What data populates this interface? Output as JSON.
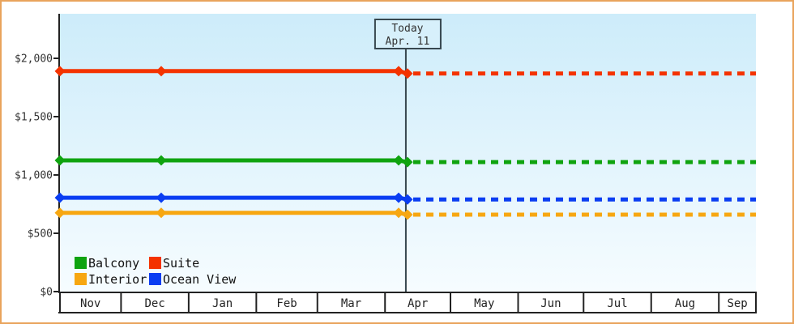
{
  "colors": {
    "frame_border": "#e9a45c",
    "page_background": "#ffffff",
    "plot_gradient_top": "#cdecfa",
    "plot_gradient_bottom": "#f6fcff",
    "axis": "#222222",
    "tick_text": "#333333",
    "today_line": "#37474f",
    "today_box_fill": "#d7f0fb",
    "legend_text": "#111111"
  },
  "chart_data": {
    "type": "line",
    "title": "",
    "grid": false,
    "y_axis": {
      "tick_values": [
        0,
        500,
        1000,
        1500,
        2000
      ],
      "tick_labels": [
        "$0",
        "$500",
        "$1,000",
        "$1,500",
        "$2,000"
      ],
      "unit": "USD",
      "plot_max_value": 2380
    },
    "x_axis": {
      "month_labels": [
        "Nov",
        "Dec",
        "Jan",
        "Feb",
        "Mar",
        "Apr",
        "May",
        "Jun",
        "Jul",
        "Aug",
        "Sep"
      ],
      "month_day_spans": [
        28,
        31,
        31,
        28,
        31,
        30,
        31,
        30,
        31,
        31,
        17
      ]
    },
    "today": {
      "label_line1": "Today",
      "label_line2": "Apr. 11",
      "x_fraction": 0.497
    },
    "series": [
      {
        "name": "Suite",
        "color": "#f43300",
        "past_value": 1890,
        "current_value": 1870,
        "point_x_fractions": [
          0,
          0.1455,
          0.4866,
          0.4994
        ],
        "point_values": [
          1890,
          1890,
          1890,
          1870
        ]
      },
      {
        "name": "Balcony",
        "color": "#0fa30f",
        "past_value": 1125,
        "current_value": 1110,
        "point_x_fractions": [
          0,
          0.1455,
          0.4866,
          0.4994
        ],
        "point_values": [
          1125,
          1125,
          1125,
          1110
        ]
      },
      {
        "name": "Ocean View",
        "color": "#0a3df2",
        "past_value": 805,
        "current_value": 790,
        "point_x_fractions": [
          0,
          0.1455,
          0.4866,
          0.4994
        ],
        "point_values": [
          805,
          805,
          805,
          790
        ]
      },
      {
        "name": "Interior",
        "color": "#f7a711",
        "past_value": 675,
        "current_value": 660,
        "point_x_fractions": [
          0,
          0.1455,
          0.4866,
          0.4994
        ],
        "point_values": [
          675,
          675,
          675,
          660
        ]
      }
    ],
    "projection": {
      "style": "dashed",
      "extends_to": "right-edge"
    },
    "legend": {
      "position": "bottom-left",
      "rows": [
        [
          "Balcony",
          "Suite"
        ],
        [
          "Interior",
          "Ocean View"
        ]
      ]
    }
  }
}
